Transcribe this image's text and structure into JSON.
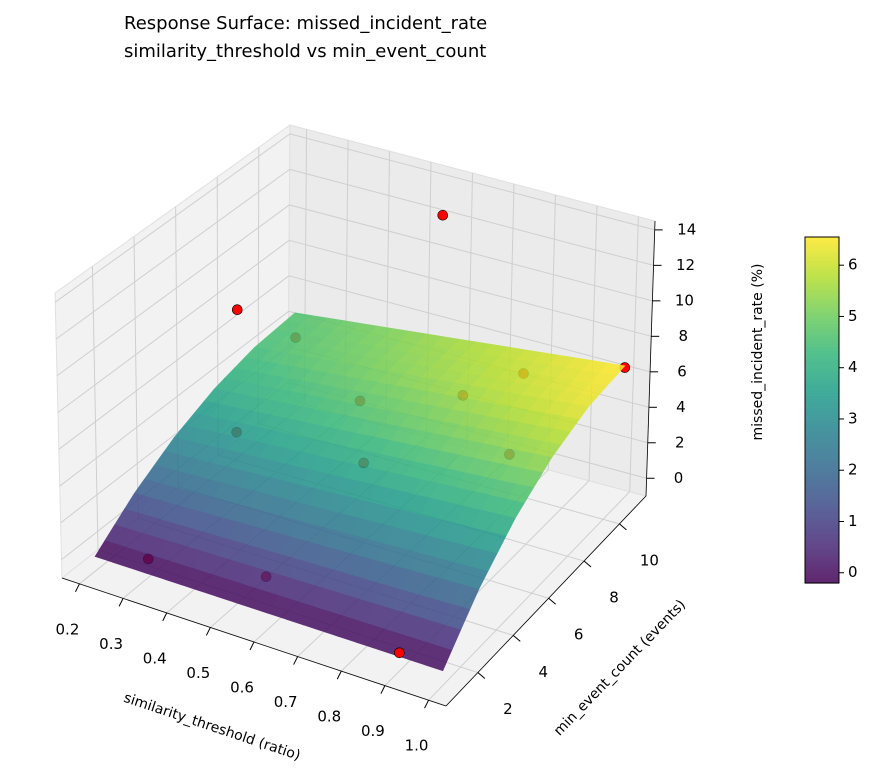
{
  "chart_data": {
    "type": "surface",
    "title": "Response Surface: missed_incident_rate",
    "subtitle": "similarity_threshold vs min_event_count",
    "xlabel": "similarity_threshold (ratio)",
    "ylabel": "min_event_count (events)",
    "zlabel": "missed_incident_rate (%)",
    "xlim": [
      0.16,
      1.04
    ],
    "ylim": [
      0.2,
      11.5
    ],
    "zlim": [
      -1,
      14.5
    ],
    "xticks": [
      0.2,
      0.3,
      0.4,
      0.5,
      0.6,
      0.7,
      0.8,
      0.9,
      {
        "value": 1,
        "label": "1.0"
      }
    ],
    "yticks": [
      2,
      4,
      6,
      8,
      10
    ],
    "zticks": [
      0,
      2,
      4,
      6,
      8,
      10,
      12,
      14
    ],
    "grid": true,
    "surface": {
      "x": [
        0.2,
        0.36,
        0.52,
        0.68,
        0.84,
        1.0
      ],
      "y": [
        1,
        3,
        5,
        7,
        9,
        11
      ],
      "z": [
        [
          -0.2,
          -0.2,
          -0.2,
          -0.2,
          -0.2,
          -0.2
        ],
        [
          1.53,
          1.67,
          1.82,
          1.96,
          2.1,
          2.25
        ],
        [
          2.87,
          3.13,
          3.38,
          3.64,
          3.9,
          4.15
        ],
        [
          3.83,
          4.17,
          4.5,
          4.84,
          5.18,
          5.51
        ],
        [
          4.41,
          4.79,
          5.18,
          5.56,
          5.94,
          6.33
        ],
        [
          4.6,
          5.0,
          5.4,
          5.8,
          6.2,
          6.6
        ]
      ],
      "alpha": 0.85
    },
    "colormap": "viridis",
    "clim": [
      -0.2,
      6.55
    ],
    "cticks": [
      0,
      1,
      2,
      3,
      4,
      5,
      6
    ],
    "points": {
      "x": [
        0.3,
        0.55,
        0.9,
        0.3,
        0.25,
        0.5,
        0.6,
        0.7,
        0.8,
        1.0,
        0.9,
        0.35,
        0.6
      ],
      "y": [
        1.5,
        2,
        1,
        6,
        10,
        8,
        6,
        9,
        10,
        11,
        7,
        5,
        10
      ],
      "z": [
        0.0,
        0.5,
        0.0,
        3.0,
        4.4,
        4.3,
        3.4,
        5.0,
        5.9,
        6.5,
        5.0,
        11.0,
        13.5
      ],
      "color": "#ff0000"
    }
  }
}
